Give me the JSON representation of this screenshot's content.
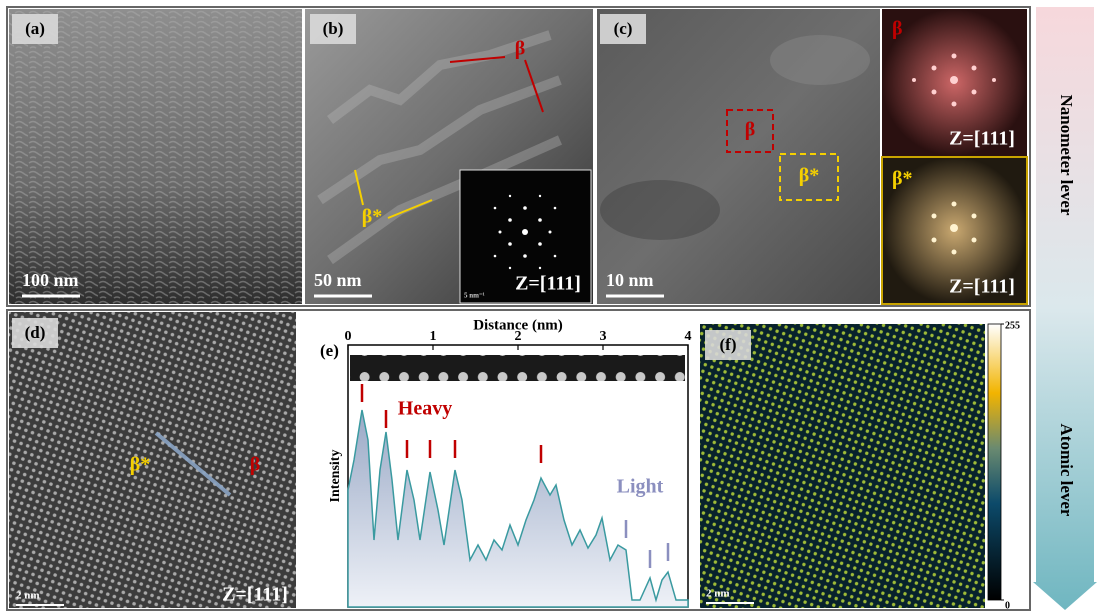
{
  "panels": {
    "a": {
      "label": "(a)",
      "scale_bar": "100 nm"
    },
    "b": {
      "label": "(b)",
      "phase_labels": [
        "β",
        "β*"
      ],
      "scale_bar": "50 nm",
      "inset_scale": "5 nm⁻¹",
      "zone_axis": "Z=[111]"
    },
    "c": {
      "label": "(c)",
      "boxes": [
        "β",
        "β*"
      ],
      "scale_bar": "10 nm",
      "fft_insets": [
        {
          "label": "β",
          "zone_axis": "Z=[111]"
        },
        {
          "label": "β*",
          "zone_axis": "Z=[111]"
        }
      ]
    },
    "d": {
      "label": "(d)",
      "phase_labels": [
        "β*",
        "β"
      ],
      "scale_bar": "2 nm",
      "zone_axis": "Z=[111]"
    },
    "e": {
      "label": "(e)",
      "x_label": "Distance (nm)",
      "y_label": "Intensity",
      "annotations": [
        "Heavy",
        "Light"
      ],
      "xlim": [
        0,
        4
      ],
      "xticks": [
        0,
        1,
        2,
        3,
        4
      ]
    },
    "f": {
      "label": "(f)",
      "scale_bar": "2 nm",
      "colorbar": {
        "lim": [
          0,
          255
        ],
        "ticks": [
          255,
          0
        ]
      }
    }
  },
  "side_arrow": {
    "top": "Nanometer lever",
    "bottom": "Atomic lever"
  }
}
